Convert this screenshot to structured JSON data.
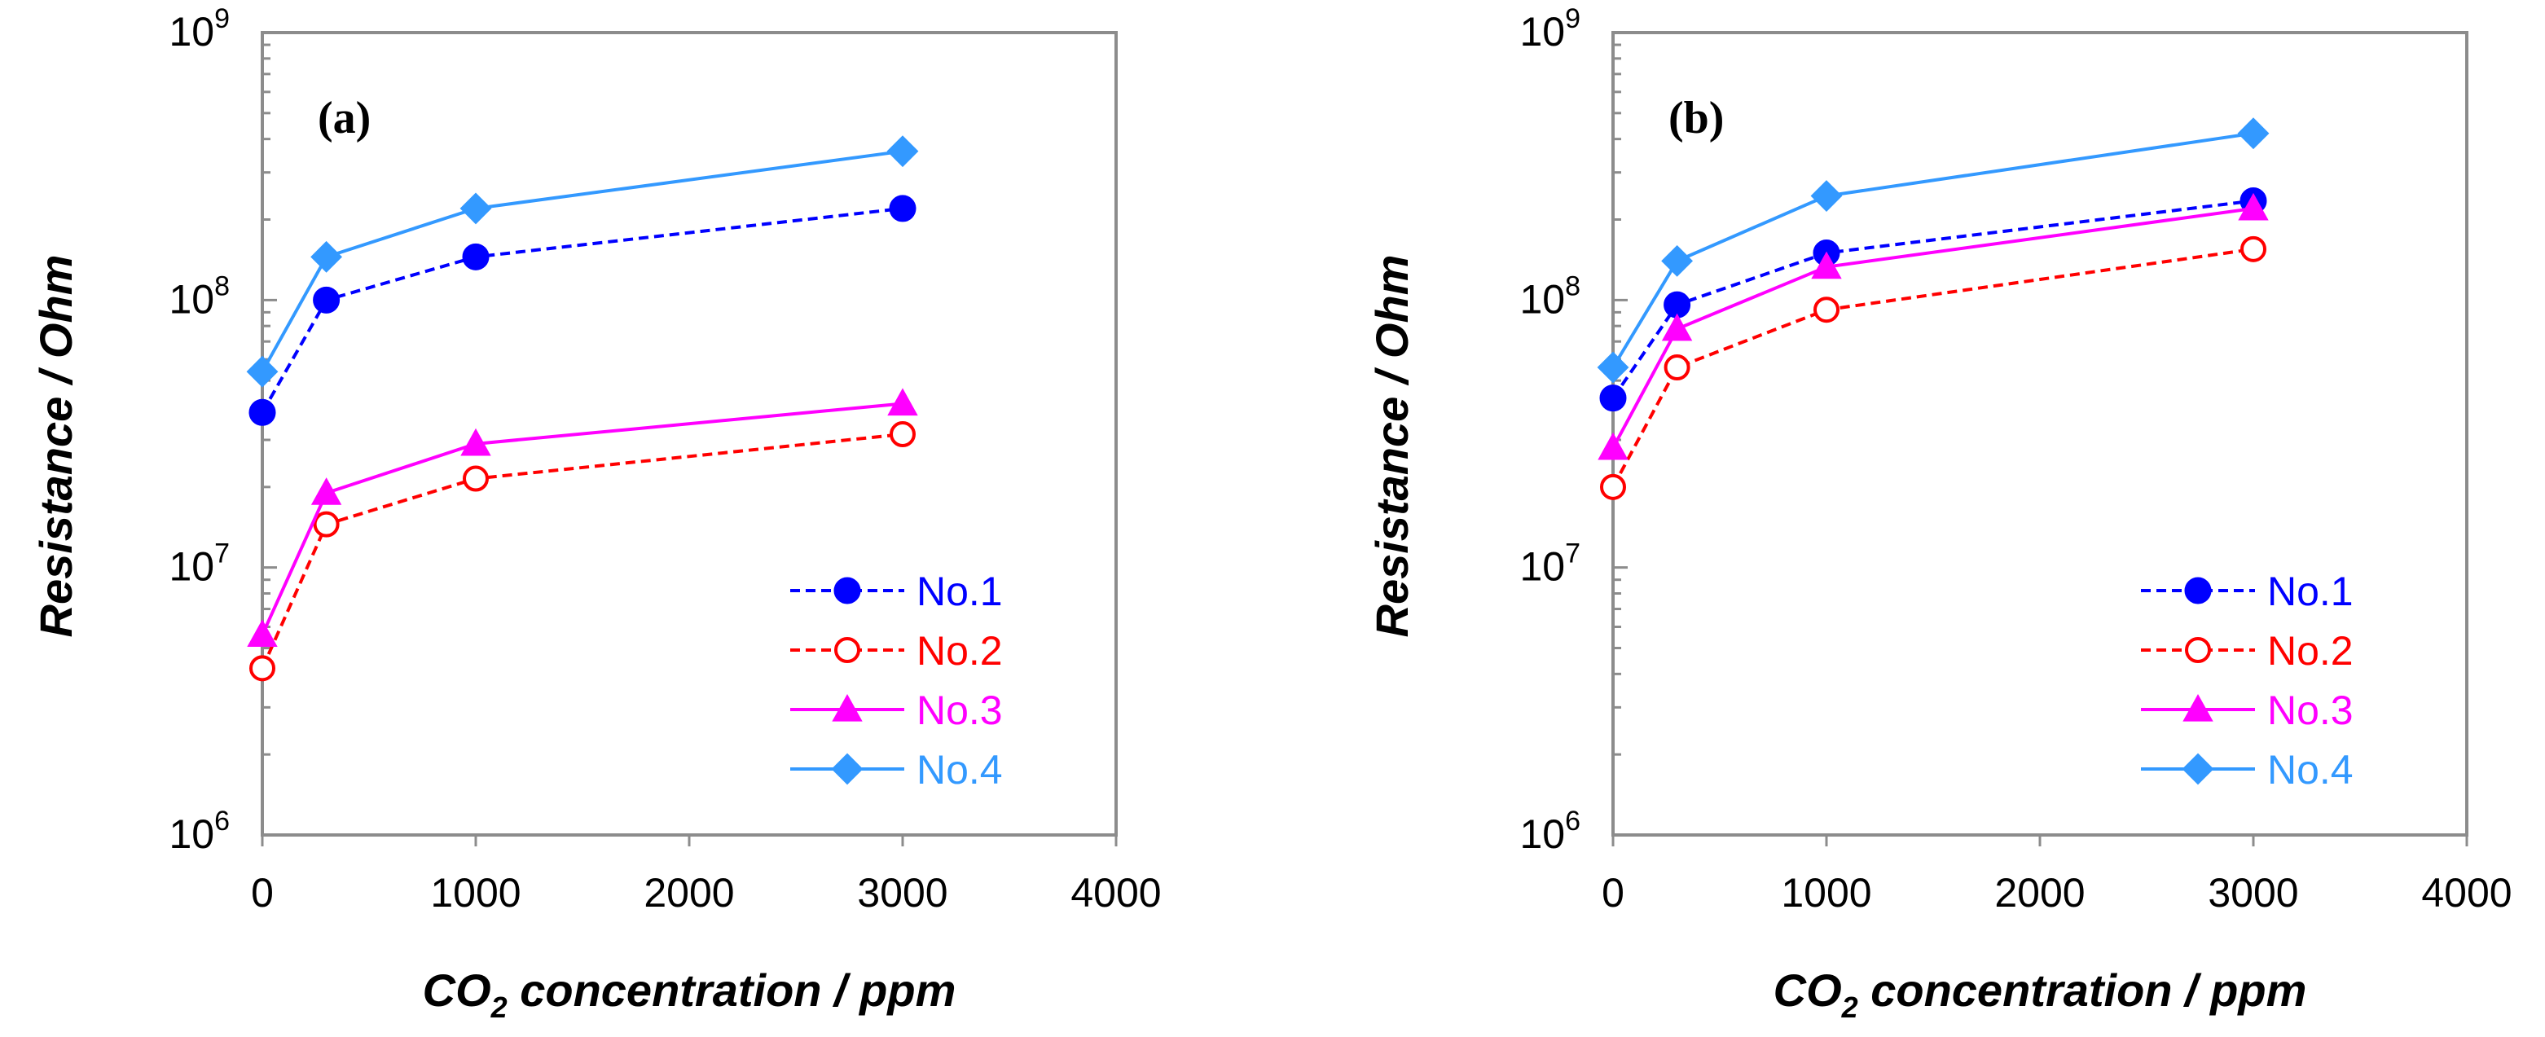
{
  "chart_data": [
    {
      "type": "line",
      "panel_label": "(a)",
      "xlabel_main": "CO",
      "xlabel_sub": "2",
      "xlabel_rest": " concentration / ppm",
      "ylabel": "Resistance / Ohm",
      "xlim": [
        0,
        4000
      ],
      "ylim": [
        1000000,
        1000000000
      ],
      "yscale": "log",
      "x_ticks": [
        "0",
        "1000",
        "2000",
        "3000",
        "4000"
      ],
      "y_ticks": [
        {
          "base": "10",
          "exp": "6"
        },
        {
          "base": "10",
          "exp": "7"
        },
        {
          "base": "10",
          "exp": "8"
        },
        {
          "base": "10",
          "exp": "9"
        }
      ],
      "legend_position": "bottom-right",
      "x": [
        0,
        300,
        1000,
        3000
      ],
      "series": [
        {
          "name": "No.1",
          "color": "#0000ff",
          "marker": "circle-filled",
          "dashed": true,
          "values": [
            38000000,
            100000000,
            145000000,
            220000000
          ]
        },
        {
          "name": "No.2",
          "color": "#ff0000",
          "marker": "circle-open",
          "dashed": true,
          "values": [
            4200000,
            14500000,
            21500000,
            31500000
          ]
        },
        {
          "name": "No.3",
          "color": "#ff00ff",
          "marker": "triangle",
          "dashed": false,
          "values": [
            5600000,
            19000000,
            29000000,
            41000000
          ]
        },
        {
          "name": "No.4",
          "color": "#3399ff",
          "marker": "diamond",
          "dashed": false,
          "values": [
            54000000,
            145000000,
            220000000,
            360000000
          ]
        }
      ]
    },
    {
      "type": "line",
      "panel_label": "(b)",
      "xlabel_main": "CO",
      "xlabel_sub": "2",
      "xlabel_rest": " concentration / ppm",
      "ylabel": "Resistance / Ohm",
      "xlim": [
        0,
        4000
      ],
      "ylim": [
        1000000,
        1000000000
      ],
      "yscale": "log",
      "x_ticks": [
        "0",
        "1000",
        "2000",
        "3000",
        "4000"
      ],
      "y_ticks": [
        {
          "base": "10",
          "exp": "6"
        },
        {
          "base": "10",
          "exp": "7"
        },
        {
          "base": "10",
          "exp": "8"
        },
        {
          "base": "10",
          "exp": "9"
        }
      ],
      "legend_position": "bottom-right",
      "x": [
        0,
        300,
        1000,
        3000
      ],
      "series": [
        {
          "name": "No.1",
          "color": "#0000ff",
          "marker": "circle-filled",
          "dashed": true,
          "values": [
            43000000,
            96000000,
            150000000,
            235000000
          ]
        },
        {
          "name": "No.2",
          "color": "#ff0000",
          "marker": "circle-open",
          "dashed": true,
          "values": [
            20000000,
            56000000,
            92000000,
            155000000
          ]
        },
        {
          "name": "No.3",
          "color": "#ff00ff",
          "marker": "triangle",
          "dashed": false,
          "values": [
            28000000,
            78000000,
            133000000,
            220000000
          ]
        },
        {
          "name": "No.4",
          "color": "#3399ff",
          "marker": "diamond",
          "dashed": false,
          "values": [
            56000000,
            140000000,
            245000000,
            420000000
          ]
        }
      ]
    }
  ]
}
